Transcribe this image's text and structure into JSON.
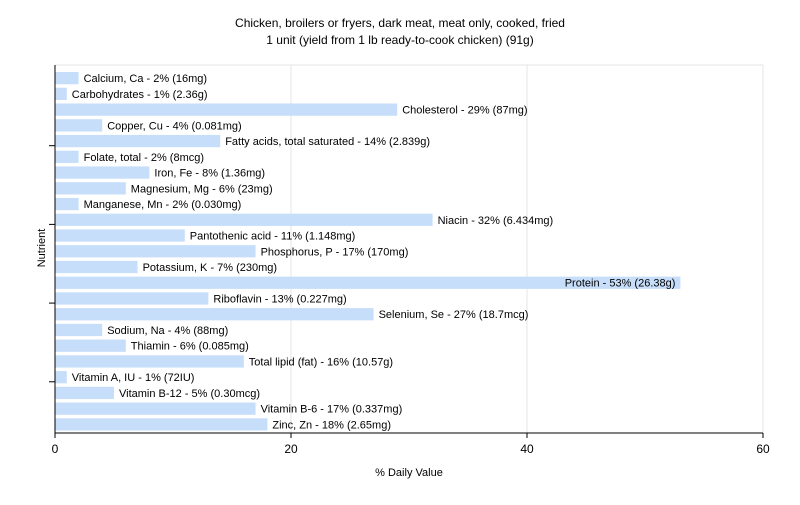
{
  "chart_data": {
    "type": "bar",
    "orientation": "horizontal",
    "title_line1": "Chicken, broilers or fryers, dark meat, meat only, cooked, fried",
    "title_line2": "1 unit (yield from 1 lb ready-to-cook chicken) (91g)",
    "xlabel": "% Daily Value",
    "ylabel": "Nutrient",
    "xlim": [
      0,
      60
    ],
    "xticks": [
      "0",
      "20",
      "40",
      "60"
    ],
    "grid": "vertical",
    "bar_color": "#c7defa",
    "categories": [
      "Calcium, Ca",
      "Carbohydrates",
      "Cholesterol",
      "Copper, Cu",
      "Fatty acids, total saturated",
      "Folate, total",
      "Iron, Fe",
      "Magnesium, Mg",
      "Manganese, Mn",
      "Niacin",
      "Pantothenic acid",
      "Phosphorus, P",
      "Potassium, K",
      "Protein",
      "Riboflavin",
      "Selenium, Se",
      "Sodium, Na",
      "Thiamin",
      "Total lipid (fat)",
      "Vitamin A, IU",
      "Vitamin B-12",
      "Vitamin B-6",
      "Zinc, Zn"
    ],
    "values": [
      2,
      1,
      29,
      4,
      14,
      2,
      8,
      6,
      2,
      32,
      11,
      17,
      7,
      53,
      13,
      27,
      4,
      6,
      16,
      1,
      5,
      17,
      18
    ],
    "labels": [
      "Calcium, Ca - 2% (16mg)",
      "Carbohydrates - 1% (2.36g)",
      "Cholesterol - 29% (87mg)",
      "Copper, Cu - 4% (0.081mg)",
      "Fatty acids, total saturated - 14% (2.839g)",
      "Folate, total - 2% (8mcg)",
      "Iron, Fe - 8% (1.36mg)",
      "Magnesium, Mg - 6% (23mg)",
      "Manganese, Mn - 2% (0.030mg)",
      "Niacin - 32% (6.434mg)",
      "Pantothenic acid - 11% (1.148mg)",
      "Phosphorus, P - 17% (170mg)",
      "Potassium, K - 7% (230mg)",
      "Protein - 53% (26.38g)",
      "Riboflavin - 13% (0.227mg)",
      "Selenium, Se - 27% (18.7mcg)",
      "Sodium, Na - 4% (88mg)",
      "Thiamin - 6% (0.085mg)",
      "Total lipid (fat) - 16% (10.57g)",
      "Vitamin A, IU - 1% (72IU)",
      "Vitamin B-12 - 5% (0.30mcg)",
      "Vitamin B-6 - 17% (0.337mg)",
      "Zinc, Zn - 18% (2.65mg)"
    ]
  }
}
